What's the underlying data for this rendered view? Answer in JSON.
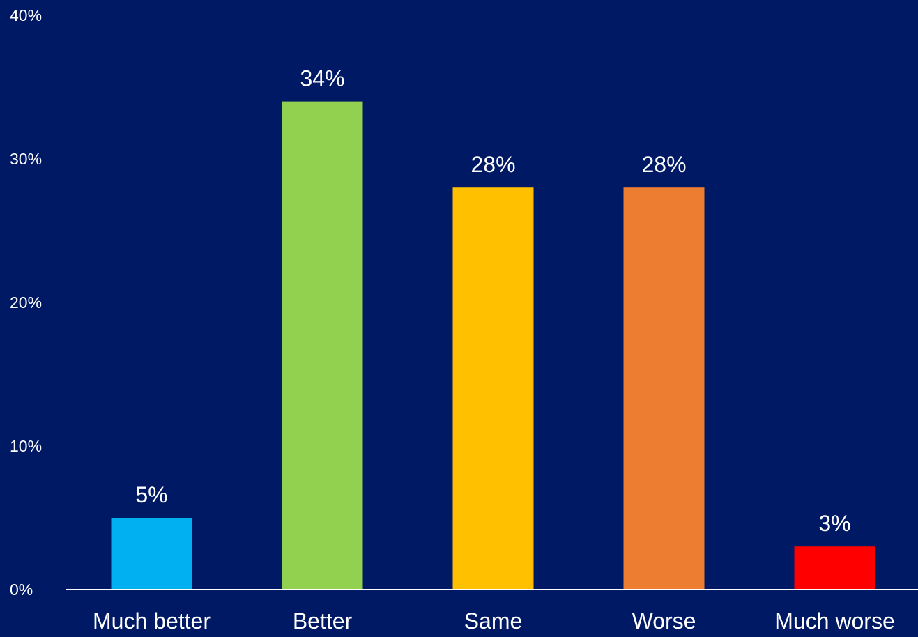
{
  "chart_data": {
    "type": "bar",
    "title": "",
    "xlabel": "",
    "ylabel": "",
    "categories": [
      "Much better",
      "Better",
      "Same",
      "Worse",
      "Much worse"
    ],
    "values": [
      5,
      34,
      28,
      28,
      3
    ],
    "data_labels": [
      "5%",
      "34%",
      "28%",
      "28%",
      "3%"
    ],
    "bar_colors": [
      "#00B0F0",
      "#92D050",
      "#FFC000",
      "#ED7D31",
      "#FF0000"
    ],
    "ylim": [
      0,
      40
    ],
    "yticks": [
      0,
      10,
      20,
      30,
      40
    ],
    "ytick_labels": [
      "0%",
      "10%",
      "20%",
      "30%",
      "40%"
    ],
    "grid": false,
    "legend": "none",
    "background_color": "#001965",
    "text_color": "#FFFFFF",
    "axis_color": "#FFFFFF"
  }
}
